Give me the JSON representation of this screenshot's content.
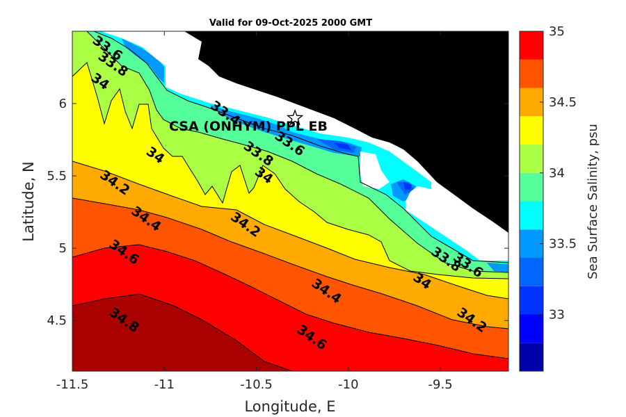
{
  "chart_data": {
    "type": "contourf",
    "title": "Valid for 09-Oct-2025 2000 GMT",
    "xlabel": "Longitude, E",
    "ylabel": "Latitude, N",
    "xlim": [
      -11.5,
      -9.13
    ],
    "ylim": [
      4.15,
      6.5
    ],
    "xticks": [
      -11.5,
      -11,
      -10.5,
      -10,
      -9.5
    ],
    "xtick_labels": [
      "-11.5",
      "-11",
      "-10.5",
      "-10",
      "-9.5"
    ],
    "yticks": [
      4.5,
      5,
      5.5,
      6
    ],
    "ytick_labels": [
      "4.5",
      "5",
      "5.5",
      "6"
    ],
    "colorbar": {
      "label": "Sea Surface Salinity, psu",
      "range": [
        32.6,
        35
      ],
      "ticks": [
        33,
        33.5,
        34,
        34.5,
        35
      ],
      "tick_labels": [
        "33",
        "33.5",
        "34",
        "34.5",
        "35"
      ],
      "levels": [
        32.6,
        32.8,
        33.0,
        33.2,
        33.4,
        33.6,
        33.8,
        34.0,
        34.2,
        34.4,
        34.6,
        34.8,
        35.0
      ],
      "colors": [
        "#0000aa",
        "#0000ff",
        "#0033ff",
        "#0066ff",
        "#0099ff",
        "#00ffff",
        "#55ff99",
        "#aaff44",
        "#ffff00",
        "#ffaa00",
        "#ff5500",
        "#ff0000",
        "#aa0000"
      ]
    },
    "contour_labels": [
      {
        "text": "33.6",
        "lon": -11.31,
        "lat": 6.38
      },
      {
        "text": "33.8",
        "lon": -11.28,
        "lat": 6.27
      },
      {
        "text": "34",
        "lon": -11.35,
        "lat": 6.15
      },
      {
        "text": "33.4",
        "lon": -10.67,
        "lat": 5.93
      },
      {
        "text": "34",
        "lon": -11.05,
        "lat": 5.64
      },
      {
        "text": "33.8",
        "lon": -10.49,
        "lat": 5.65
      },
      {
        "text": "33.6",
        "lon": -10.32,
        "lat": 5.72
      },
      {
        "text": "34",
        "lon": -10.46,
        "lat": 5.5
      },
      {
        "text": "34.2",
        "lon": -11.27,
        "lat": 5.45
      },
      {
        "text": "34.4",
        "lon": -11.1,
        "lat": 5.2
      },
      {
        "text": "34.2",
        "lon": -10.56,
        "lat": 5.16
      },
      {
        "text": "34.6",
        "lon": -11.22,
        "lat": 4.97
      },
      {
        "text": "33.8",
        "lon": -9.47,
        "lat": 4.92
      },
      {
        "text": "33.6",
        "lon": -9.35,
        "lat": 4.88
      },
      {
        "text": "34",
        "lon": -9.6,
        "lat": 4.77
      },
      {
        "text": "34.4",
        "lon": -10.12,
        "lat": 4.7
      },
      {
        "text": "34.2",
        "lon": -9.33,
        "lat": 4.5
      },
      {
        "text": "34.8",
        "lon": -11.22,
        "lat": 4.5
      },
      {
        "text": "34.6",
        "lon": -10.2,
        "lat": 4.38
      }
    ],
    "site": {
      "name": "CSA (ONHYM) PPL EB",
      "lon": -10.29,
      "lat": 5.9,
      "marker": "star"
    }
  }
}
